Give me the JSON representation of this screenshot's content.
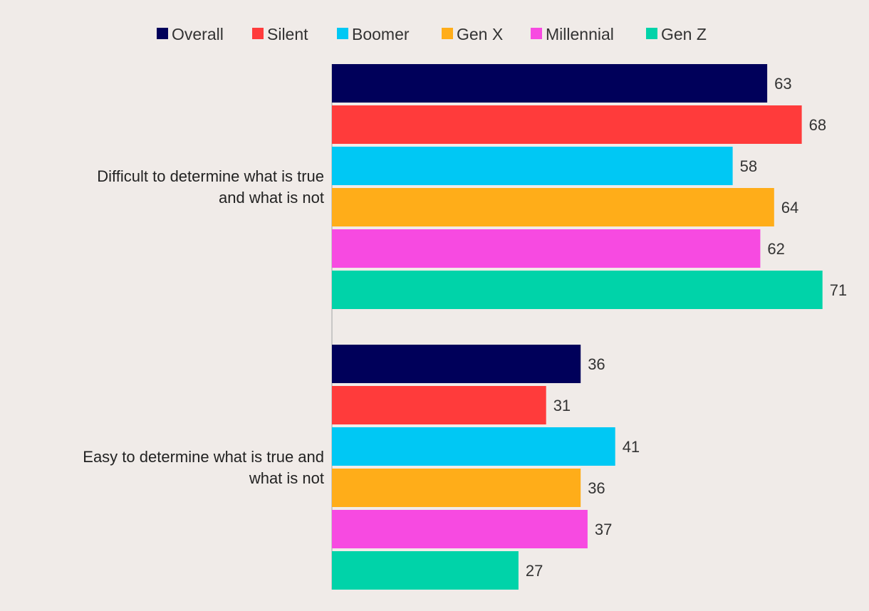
{
  "chart_data": {
    "type": "bar",
    "orientation": "horizontal",
    "title": "",
    "xlabel": "",
    "ylabel": "",
    "xlim": [
      0,
      70
    ],
    "grid": false,
    "legend_position": "top",
    "categories": [
      [
        "Difficult to determine what is true",
        "and what is not"
      ],
      [
        "Easy to determine what is true and",
        "what is not"
      ]
    ],
    "series": [
      {
        "name": "Overall",
        "color": "#00005a",
        "values": [
          63,
          36
        ]
      },
      {
        "name": "Silent",
        "color": "#ff3b3b",
        "values": [
          68,
          31
        ]
      },
      {
        "name": "Boomer",
        "color": "#00c8f4",
        "values": [
          58,
          41
        ]
      },
      {
        "name": "Gen X",
        "color": "#ffad19",
        "values": [
          64,
          36
        ]
      },
      {
        "name": "Millennial",
        "color": "#f74ae1",
        "values": [
          62,
          37
        ]
      },
      {
        "name": "Gen Z",
        "color": "#00d3a9",
        "values": [
          71,
          27
        ]
      }
    ]
  }
}
